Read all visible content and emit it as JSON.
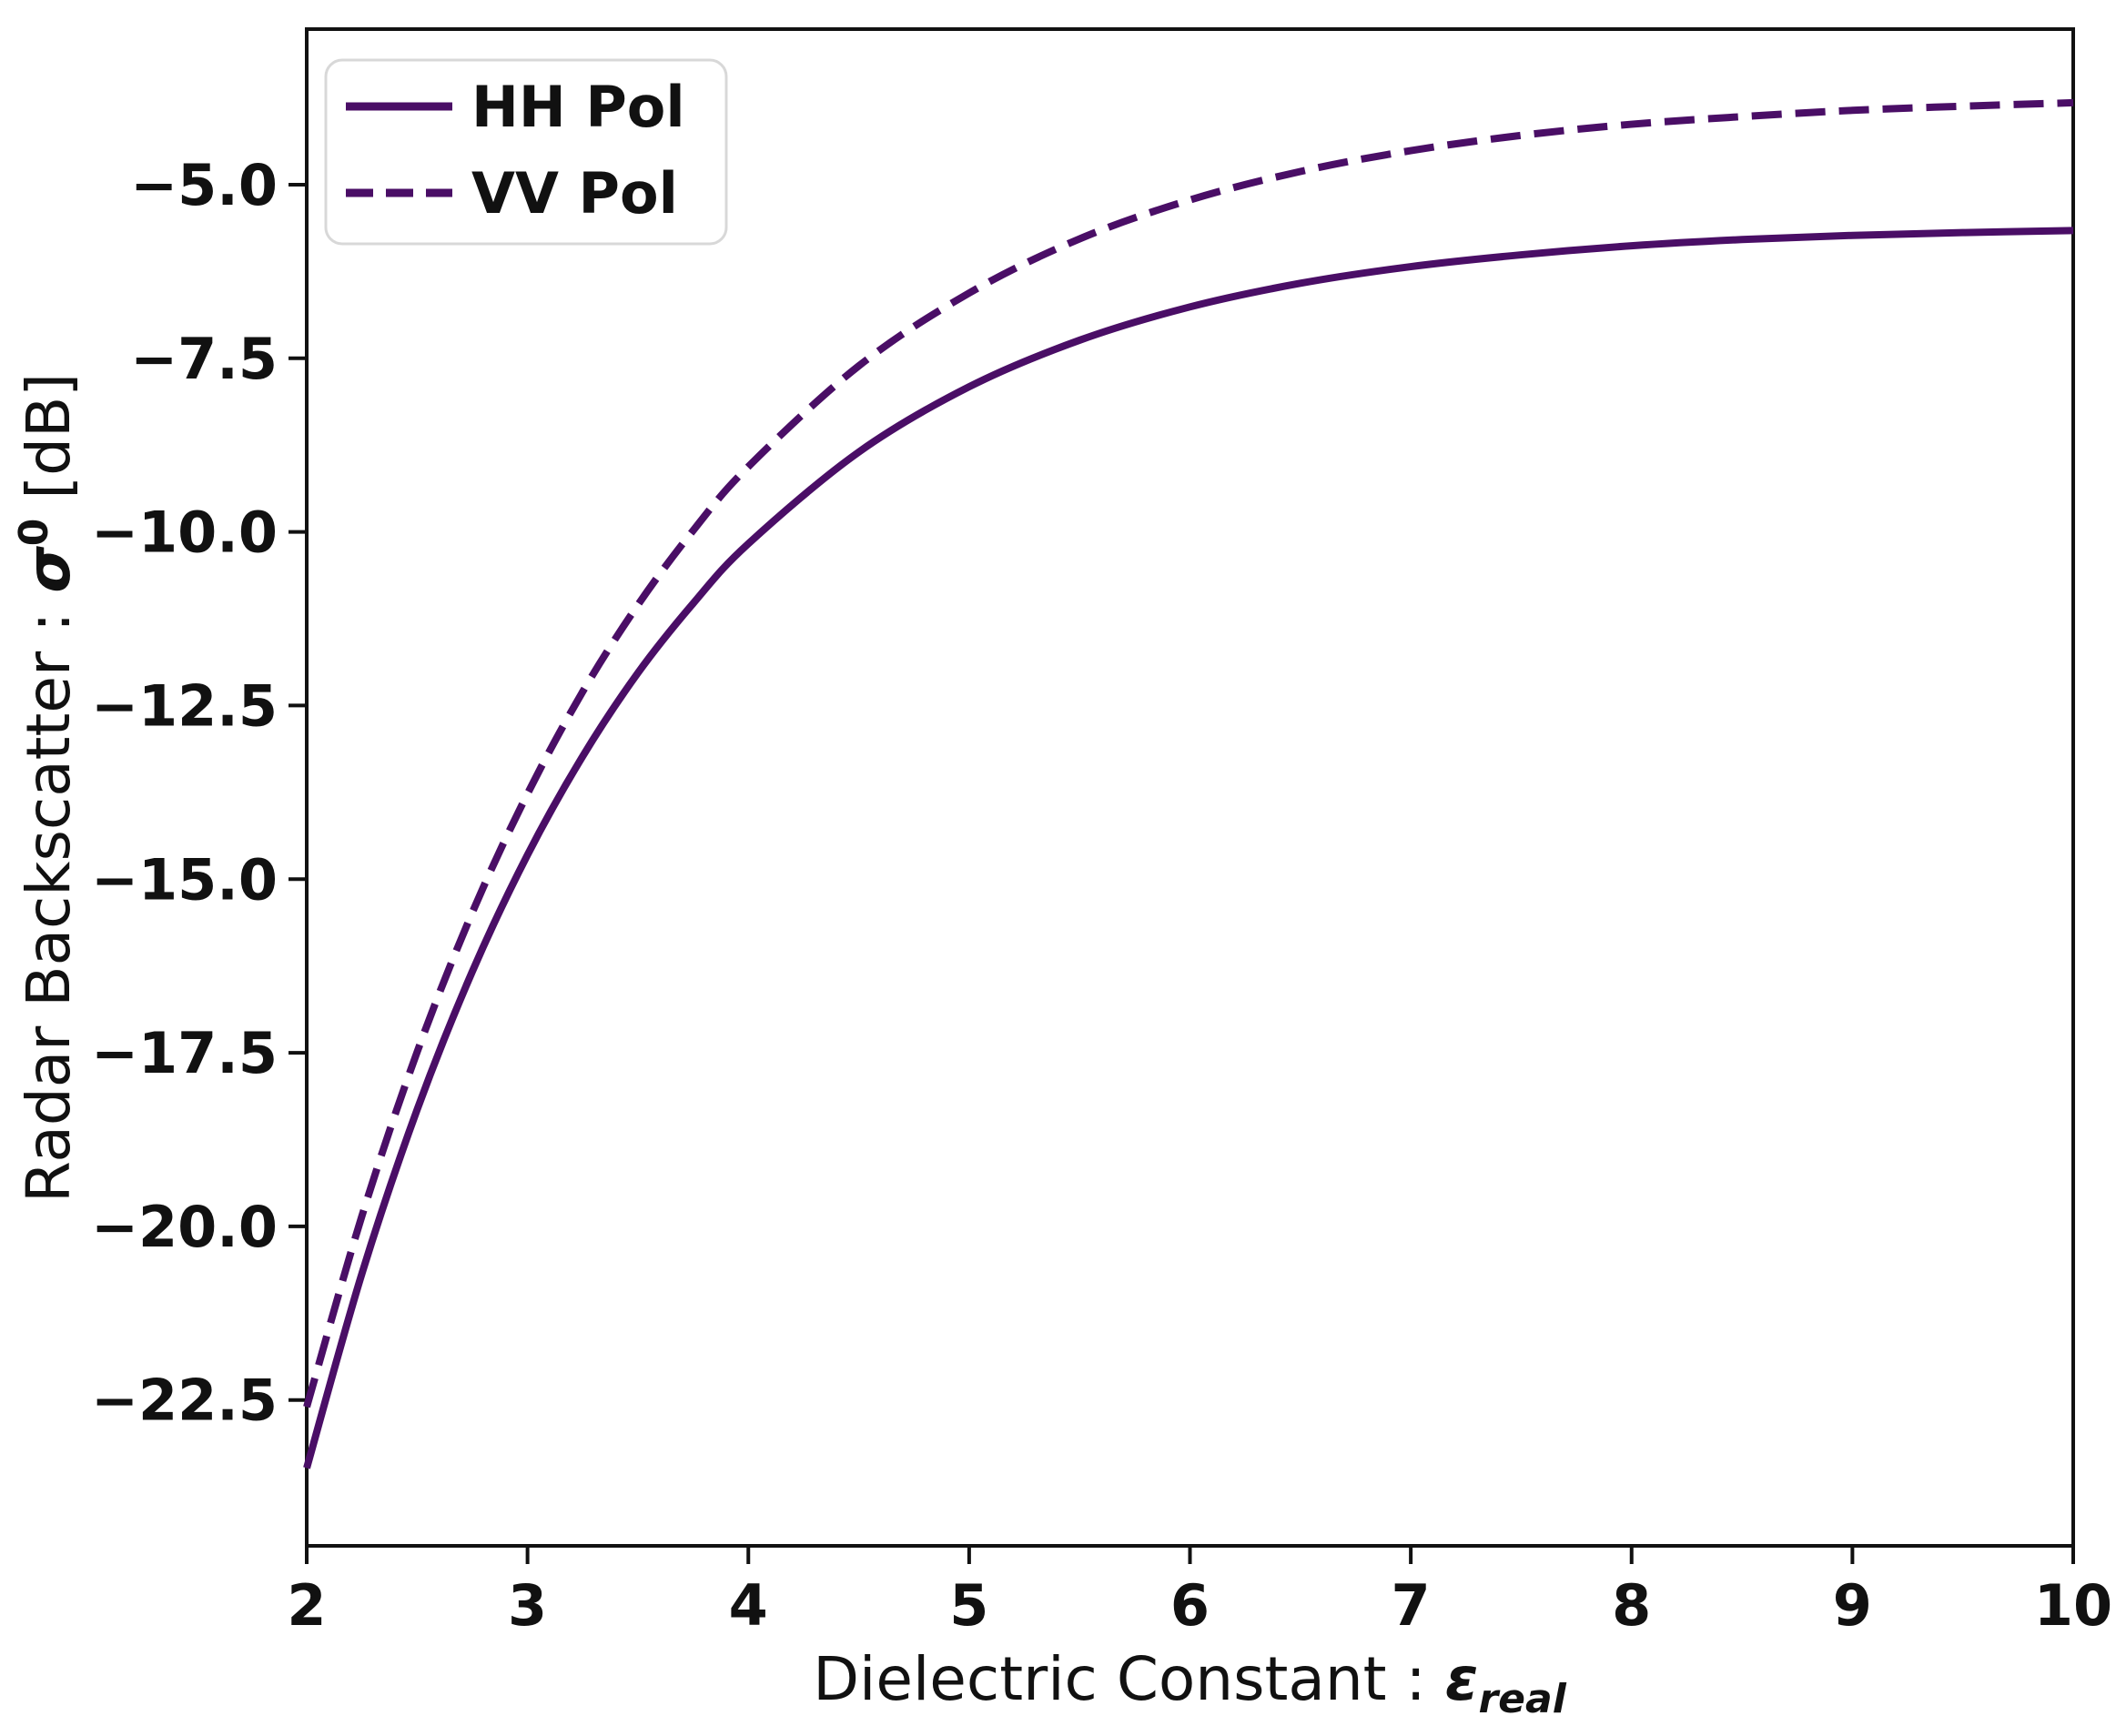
{
  "chart_data": {
    "type": "line",
    "title": "",
    "xlabel_prefix": "Dielectric Constant : ",
    "xlabel_symbol": "ε",
    "xlabel_subscript": "real",
    "ylabel_prefix": "Radar Backscatter : ",
    "ylabel_symbol": "σ",
    "ylabel_superscript": "0",
    "ylabel_suffix": " [dB]",
    "xlim": [
      2,
      10
    ],
    "ylim": [
      -24.6,
      -2.76
    ],
    "grid": false,
    "legend_position": "upper left",
    "line_color": "#4a0e66",
    "axis_color": "#111111",
    "legend_border_color": "#d8d8d8",
    "background_color": "#ffffff",
    "x_ticks": [
      "2",
      "3",
      "4",
      "5",
      "6",
      "7",
      "8",
      "9",
      "10"
    ],
    "x_tick_values": [
      2,
      3,
      4,
      5,
      6,
      7,
      8,
      9,
      10
    ],
    "y_ticks": [
      "−5.0",
      "−7.5",
      "−10.0",
      "−12.5",
      "−15.0",
      "−17.5",
      "−20.0",
      "−22.5"
    ],
    "y_tick_values": [
      -5.0,
      -7.5,
      -10.0,
      -12.5,
      -15.0,
      -17.5,
      -20.0,
      -22.5
    ],
    "x": [
      2,
      2.25,
      2.5,
      2.75,
      3,
      3.25,
      3.5,
      3.75,
      4,
      4.5,
      5,
      5.5,
      6,
      6.5,
      7,
      7.5,
      8,
      8.5,
      9,
      9.5,
      10
    ],
    "series": [
      {
        "name": "HH Pol",
        "style": "solid",
        "values": [
          -23.48,
          -20.68,
          -18.32,
          -16.33,
          -14.65,
          -13.23,
          -12.03,
          -11.03,
          -10.17,
          -8.85,
          -7.91,
          -7.24,
          -6.76,
          -6.42,
          -6.18,
          -6.01,
          -5.88,
          -5.79,
          -5.73,
          -5.69,
          -5.66
        ]
      },
      {
        "name": "VV Pol",
        "style": "dashed",
        "values": [
          -22.6,
          -19.85,
          -17.49,
          -15.48,
          -13.77,
          -12.3,
          -11.05,
          -9.98,
          -9.06,
          -7.61,
          -6.56,
          -5.78,
          -5.22,
          -4.81,
          -4.51,
          -4.29,
          -4.13,
          -4.02,
          -3.93,
          -3.87,
          -3.82
        ]
      }
    ]
  }
}
